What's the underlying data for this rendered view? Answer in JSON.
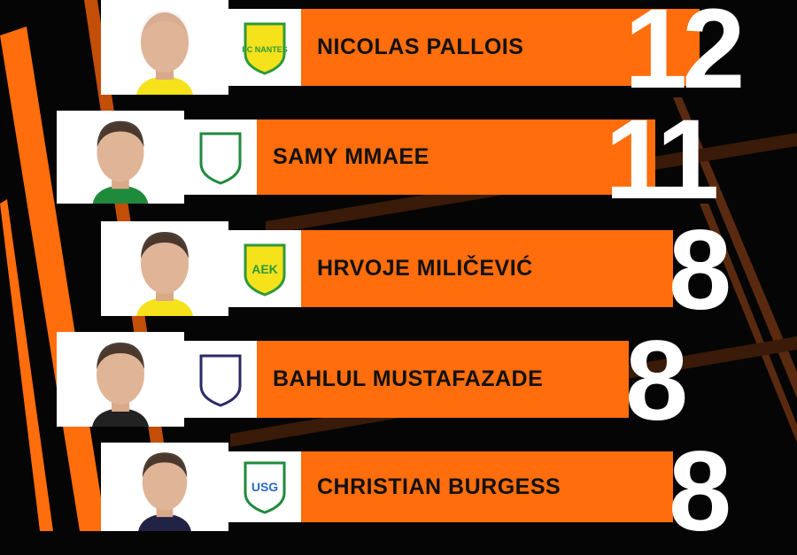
{
  "colors": {
    "accent": "#ff6d0c",
    "background": "#050505",
    "text": "#111111",
    "number": "#ffffff"
  },
  "players": [
    {
      "name": "NICOLAS PALLOIS",
      "value": "12",
      "club_logo": "fc-nantes-crest",
      "club_logo_text": "FC NANTES",
      "shirt": "#f5e21b"
    },
    {
      "name": "SAMY MMAEE",
      "value": "11",
      "club_logo": "ferencvaros-crest",
      "club_logo_text": "",
      "shirt": "#1f8a3c"
    },
    {
      "name": "HRVOJE MILIČEVIĆ",
      "value": "8",
      "club_logo": "aek-larnaca-crest",
      "club_logo_text": "AEK",
      "shirt": "#f5e21b"
    },
    {
      "name": "BAHLUL MUSTAFAZADE",
      "value": "8",
      "club_logo": "qarabag-crest",
      "club_logo_text": "",
      "shirt": "#222222"
    },
    {
      "name": "CHRISTIAN BURGESS",
      "value": "8",
      "club_logo": "union-sg-crest",
      "club_logo_text": "USG",
      "shirt": "#222244"
    }
  ]
}
